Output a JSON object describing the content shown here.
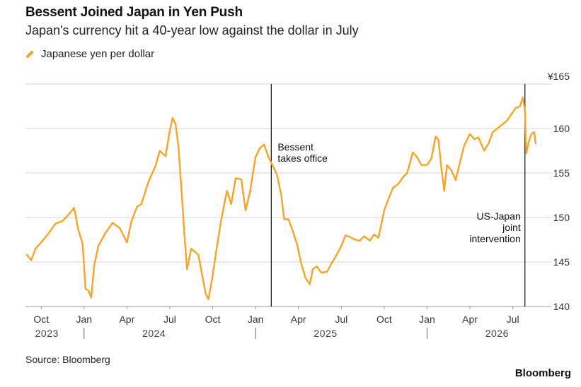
{
  "chart_data": {
    "type": "line",
    "title": "Bessent Joined Japan in Yen Push",
    "subtitle": "Japan's currency hit a 40-year low against the dollar in July",
    "legend": "Japanese yen per dollar",
    "source": "Source: Bloomberg",
    "brand": "Bloomberg",
    "ylim": [
      140,
      165
    ],
    "y_ticks": [
      "¥165",
      "160",
      "155",
      "150",
      "145",
      "140"
    ],
    "y_tick_values": [
      165,
      160,
      155,
      150,
      145,
      140
    ],
    "x_ticks": [
      "Oct",
      "Jan",
      "Apr",
      "Jul",
      "Oct",
      "Jan",
      "Apr",
      "Jul",
      "Oct",
      "Jan",
      "Apr",
      "Jul"
    ],
    "x_tick_months": [
      0,
      3,
      6,
      9,
      12,
      15,
      18,
      21,
      24,
      27,
      30,
      33
    ],
    "x_start_month_offset": -1.1,
    "x_end_month_offset": 35.0,
    "years": [
      "2023",
      "2024",
      "2025",
      "2026"
    ],
    "year_month_positions": [
      0,
      7.5,
      19.5,
      31.5
    ],
    "year_separator_months": [
      3,
      15,
      27
    ],
    "annotations": [
      {
        "text_lines": [
          "Bessent",
          "takes office"
        ],
        "month": 16.1
      },
      {
        "text_lines": [
          "US-Japan",
          "joint",
          "intervention"
        ],
        "month": 33.85
      }
    ],
    "line_color": "#f7a427",
    "series": [
      {
        "name": "Japanese yen per dollar",
        "points": [
          [
            -1.0,
            145.8
          ],
          [
            -0.7,
            145.2
          ],
          [
            -0.4,
            146.5
          ],
          [
            0.0,
            147.2
          ],
          [
            0.5,
            148.2
          ],
          [
            1.0,
            149.3
          ],
          [
            1.5,
            149.6
          ],
          [
            2.0,
            150.5
          ],
          [
            2.3,
            151.1
          ],
          [
            2.6,
            148.6
          ],
          [
            2.9,
            147.0
          ],
          [
            3.1,
            142.0
          ],
          [
            3.3,
            141.8
          ],
          [
            3.5,
            141.0
          ],
          [
            3.7,
            144.5
          ],
          [
            4.0,
            146.8
          ],
          [
            4.5,
            148.3
          ],
          [
            5.0,
            149.4
          ],
          [
            5.5,
            148.8
          ],
          [
            6.0,
            147.2
          ],
          [
            6.3,
            149.5
          ],
          [
            6.7,
            151.2
          ],
          [
            7.0,
            151.5
          ],
          [
            7.5,
            154.0
          ],
          [
            8.0,
            155.8
          ],
          [
            8.3,
            157.5
          ],
          [
            8.7,
            156.9
          ],
          [
            9.0,
            159.8
          ],
          [
            9.2,
            161.2
          ],
          [
            9.4,
            160.5
          ],
          [
            9.6,
            158.0
          ],
          [
            9.8,
            153.5
          ],
          [
            10.0,
            148.5
          ],
          [
            10.2,
            144.2
          ],
          [
            10.5,
            146.5
          ],
          [
            11.0,
            145.8
          ],
          [
            11.3,
            143.2
          ],
          [
            11.5,
            141.5
          ],
          [
            11.7,
            140.8
          ],
          [
            12.0,
            143.5
          ],
          [
            12.3,
            146.8
          ],
          [
            12.6,
            149.8
          ],
          [
            13.0,
            153.0
          ],
          [
            13.3,
            151.5
          ],
          [
            13.6,
            154.4
          ],
          [
            14.0,
            154.3
          ],
          [
            14.3,
            150.8
          ],
          [
            14.6,
            152.8
          ],
          [
            15.0,
            156.8
          ],
          [
            15.3,
            157.8
          ],
          [
            15.6,
            158.2
          ],
          [
            15.9,
            156.8
          ],
          [
            16.2,
            155.8
          ],
          [
            16.5,
            154.8
          ],
          [
            16.8,
            152.5
          ],
          [
            17.0,
            149.8
          ],
          [
            17.3,
            149.8
          ],
          [
            17.6,
            148.5
          ],
          [
            17.9,
            147.0
          ],
          [
            18.2,
            144.8
          ],
          [
            18.5,
            143.2
          ],
          [
            18.8,
            142.5
          ],
          [
            19.0,
            144.2
          ],
          [
            19.3,
            144.5
          ],
          [
            19.6,
            143.8
          ],
          [
            20.0,
            143.9
          ],
          [
            20.3,
            144.8
          ],
          [
            20.6,
            145.6
          ],
          [
            21.0,
            146.8
          ],
          [
            21.3,
            148.0
          ],
          [
            21.6,
            147.8
          ],
          [
            22.0,
            147.5
          ],
          [
            22.3,
            147.4
          ],
          [
            22.6,
            147.9
          ],
          [
            23.0,
            147.4
          ],
          [
            23.3,
            148.1
          ],
          [
            23.6,
            147.7
          ],
          [
            24.0,
            150.8
          ],
          [
            24.3,
            152.1
          ],
          [
            24.6,
            153.3
          ],
          [
            25.0,
            153.8
          ],
          [
            25.3,
            154.5
          ],
          [
            25.6,
            155.0
          ],
          [
            25.8,
            156.1
          ],
          [
            26.0,
            157.3
          ],
          [
            26.3,
            156.8
          ],
          [
            26.6,
            155.9
          ],
          [
            27.0,
            155.9
          ],
          [
            27.3,
            156.6
          ],
          [
            27.6,
            159.1
          ],
          [
            27.8,
            158.7
          ],
          [
            28.0,
            155.6
          ],
          [
            28.2,
            153.0
          ],
          [
            28.4,
            155.9
          ],
          [
            28.7,
            155.3
          ],
          [
            29.0,
            154.2
          ],
          [
            29.3,
            156.2
          ],
          [
            29.6,
            158.1
          ],
          [
            30.0,
            159.4
          ],
          [
            30.3,
            158.8
          ],
          [
            30.6,
            159.0
          ],
          [
            31.0,
            157.5
          ],
          [
            31.3,
            158.3
          ],
          [
            31.6,
            159.6
          ],
          [
            32.0,
            160.1
          ],
          [
            32.3,
            160.5
          ],
          [
            32.6,
            160.9
          ],
          [
            32.9,
            161.6
          ],
          [
            33.2,
            162.3
          ],
          [
            33.5,
            162.5
          ],
          [
            33.7,
            163.5
          ],
          [
            33.85,
            162.0
          ],
          [
            33.95,
            157.2
          ],
          [
            34.1,
            158.4
          ],
          [
            34.3,
            159.4
          ],
          [
            34.5,
            159.6
          ],
          [
            34.6,
            158.3
          ]
        ]
      }
    ]
  }
}
